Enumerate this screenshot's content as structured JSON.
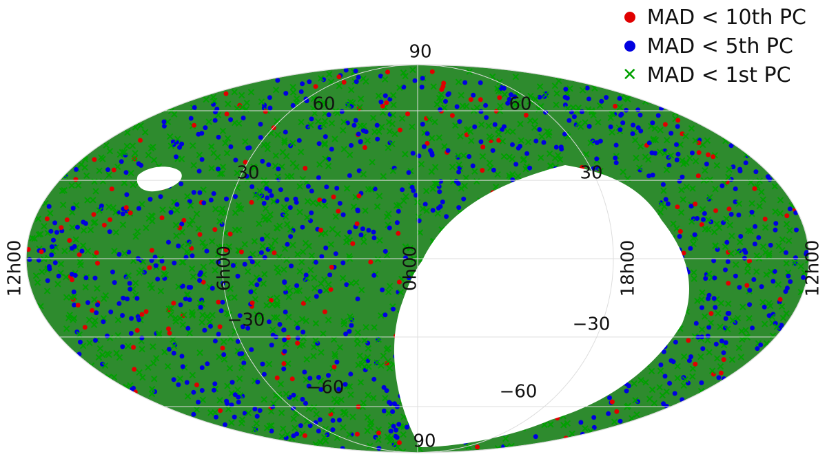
{
  "chart_data": {
    "type": "scatter",
    "projection": "mollweide",
    "title": "",
    "grid": true,
    "legend_placement": "top-right",
    "series": [
      {
        "name": "MAD < 10th PC",
        "marker": "circle",
        "color": "#e00000"
      },
      {
        "name": "MAD < 5th PC",
        "marker": "circle",
        "color": "#0000e0"
      },
      {
        "name": "MAD < 1st PC",
        "marker": "x",
        "color": "#00a000"
      }
    ],
    "meridian_ticks": [
      {
        "label": "12h00",
        "lon": 180
      },
      {
        "label": "6h00",
        "lon": 90
      },
      {
        "label": "0h00",
        "lon": 0
      },
      {
        "label": "18h00",
        "lon": -90
      },
      {
        "label": "12h00",
        "lon": -180
      }
    ],
    "parallel_ticks": [
      {
        "label": "90",
        "lat": 90
      },
      {
        "label": "60",
        "lat": 60
      },
      {
        "label": "60",
        "lat": 60
      },
      {
        "label": "30",
        "lat": 30
      },
      {
        "label": "30",
        "lat": 30
      },
      {
        "label": "−30",
        "lat": -30
      },
      {
        "label": "−30",
        "lat": -30
      },
      {
        "label": "−60",
        "lat": -60
      },
      {
        "label": "−60",
        "lat": -60
      },
      {
        "label": "90",
        "lat": -90
      }
    ],
    "empty_region": "large unsampled area to the right of 0h00 spanning roughly 0h–18h, from +30 to −90",
    "colors": {
      "background_fill": "#2e8b2e",
      "grid": "#dddddd"
    }
  }
}
